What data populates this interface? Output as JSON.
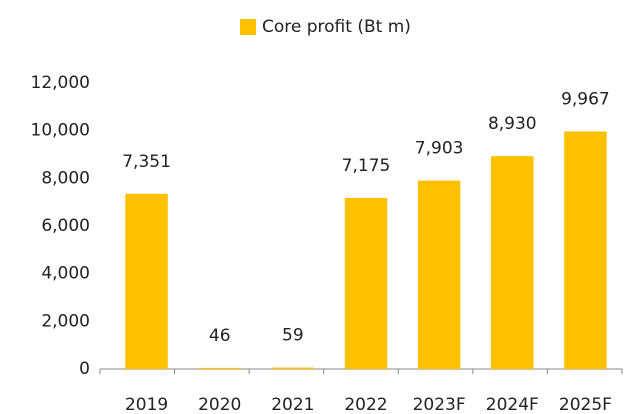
{
  "chart_data": {
    "type": "bar",
    "categories": [
      "2019",
      "2020",
      "2021",
      "2022",
      "2023F",
      "2024F",
      "2025F"
    ],
    "series": [
      {
        "name": "Core profit (Bt m)",
        "color": "#FFC000",
        "values": [
          7351,
          46,
          59,
          7175,
          7903,
          8930,
          9967
        ],
        "value_labels": [
          "7,351",
          "46",
          "59",
          "7,175",
          "7,903",
          "8,930",
          "9,967"
        ]
      }
    ],
    "ylim": [
      0,
      12000
    ],
    "yticks": [
      0,
      {
        "value": 2000,
        "label": "2,000"
      },
      {
        "value": 4000,
        "label": "4,000"
      },
      {
        "value": 6000,
        "label": "6,000"
      },
      {
        "value": 8000,
        "label": "8,000"
      },
      {
        "value": 10000,
        "label": "10,000"
      },
      {
        "value": 12000,
        "label": "12,000"
      }
    ],
    "legend": "top"
  }
}
